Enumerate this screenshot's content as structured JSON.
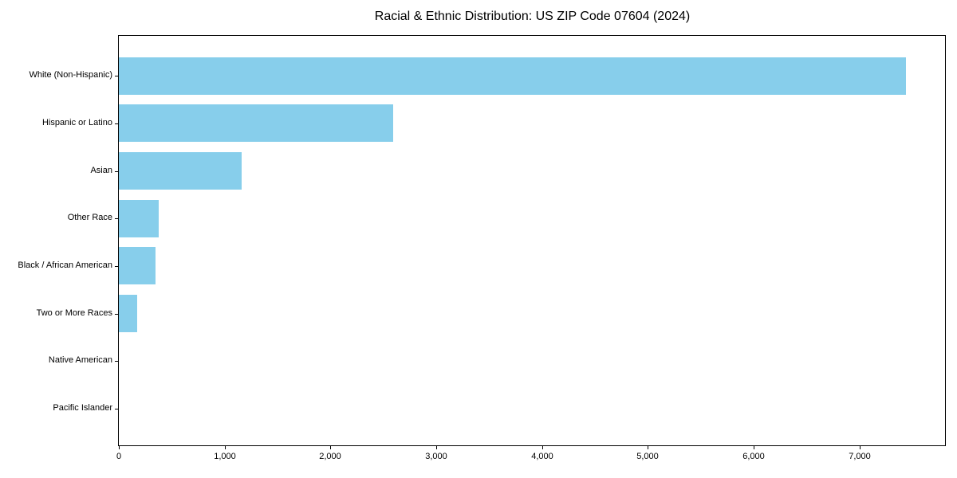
{
  "title": "Racial & Ethnic Distribution: US ZIP Code 07604 (2024)",
  "colors": {
    "bar": "#87CEEB",
    "spine": "#000000",
    "background": "#ffffff",
    "text": "#000000"
  },
  "chart_data": {
    "type": "bar",
    "orientation": "horizontal",
    "title": "Racial & Ethnic Distribution: US ZIP Code 07604 (2024)",
    "xlabel": "",
    "ylabel": "",
    "categories": [
      "White (Non-Hispanic)",
      "Hispanic or Latino",
      "Asian",
      "Other Race",
      "Black / African American",
      "Two or More Races",
      "Native American",
      "Pacific Islander"
    ],
    "values": [
      7440,
      2590,
      1160,
      375,
      345,
      170,
      0,
      0
    ],
    "xlim": [
      0,
      7815
    ],
    "x_ticks": [
      0,
      1000,
      2000,
      3000,
      4000,
      5000,
      6000,
      7000
    ],
    "x_tick_labels": [
      "0",
      "1,000",
      "2,000",
      "3,000",
      "4,000",
      "5,000",
      "6,000",
      "7,000"
    ],
    "bar_color": "#87CEEB",
    "grid": false,
    "legend": null
  }
}
